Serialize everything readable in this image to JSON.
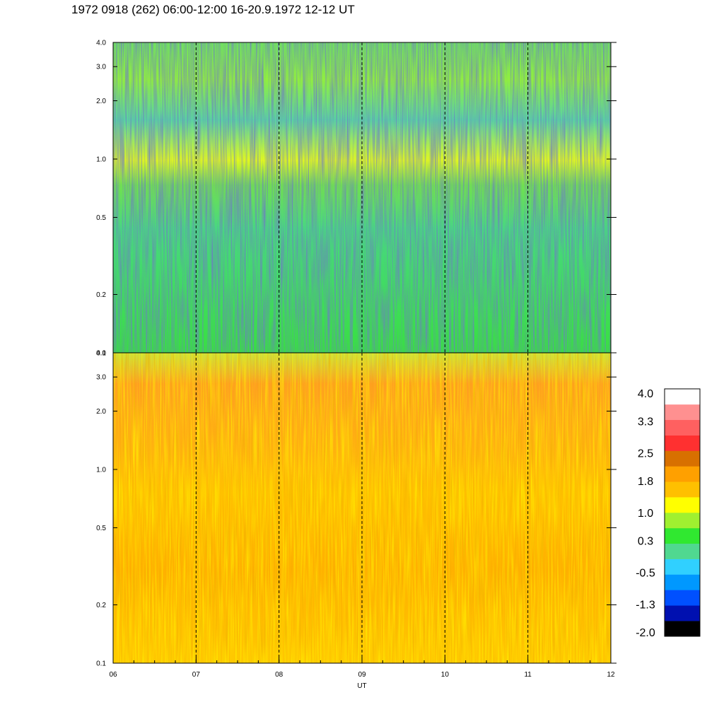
{
  "header": {
    "title": "1972 0918 (262) 06:00-12:00 16-20.9.1972  12-12 UT"
  },
  "chart_data": {
    "type": "heatmap",
    "xlabel": "UT",
    "x_ticks": [
      "06",
      "07",
      "08",
      "09",
      "10",
      "11",
      "12"
    ],
    "xlim": [
      6,
      12
    ],
    "y_scale": "log",
    "ylim": [
      0.1,
      4.0
    ],
    "panels": [
      {
        "id": "upper",
        "y_ticks": [
          "4.0",
          "3.0",
          "2.0",
          "1.0",
          "0.5",
          "0.2",
          "0.1"
        ],
        "y_tick_values": [
          4.0,
          3.0,
          2.0,
          1.0,
          0.5,
          0.2,
          0.1
        ],
        "approx_level_range": [
          -0.5,
          1.0
        ],
        "dominant_colors": [
          "#30e830",
          "#50d890",
          "#a0f030",
          "#ffff00"
        ]
      },
      {
        "id": "lower",
        "y_ticks": [
          "4.0",
          "3.0",
          "2.0",
          "1.0",
          "0.5",
          "0.2",
          "0.1"
        ],
        "y_tick_values": [
          4.0,
          3.0,
          2.0,
          1.0,
          0.5,
          0.2,
          0.1
        ],
        "approx_level_range": [
          0.3,
          2.5
        ],
        "dominant_colors": [
          "#ffa500",
          "#ffc000",
          "#ffff00",
          "#a0f030"
        ]
      }
    ],
    "colorbar": {
      "labels": [
        "4.0",
        "3.3",
        "2.5",
        "1.8",
        "1.0",
        "0.3",
        "-0.5",
        "-1.3",
        "-2.0"
      ],
      "label_values": [
        4.0,
        3.3,
        2.5,
        1.8,
        1.0,
        0.3,
        -0.5,
        -1.3,
        -2.0
      ],
      "colors": [
        "#000000",
        "#0010b0",
        "#0050ff",
        "#0098ff",
        "#30d0ff",
        "#50d890",
        "#30e830",
        "#a0f030",
        "#ffff00",
        "#ffc000",
        "#ffa000",
        "#d87000",
        "#ff3030",
        "#ff6060",
        "#ff9090",
        "#ffffff"
      ]
    },
    "grid": "dashed vertical lines at hourly ticks"
  }
}
